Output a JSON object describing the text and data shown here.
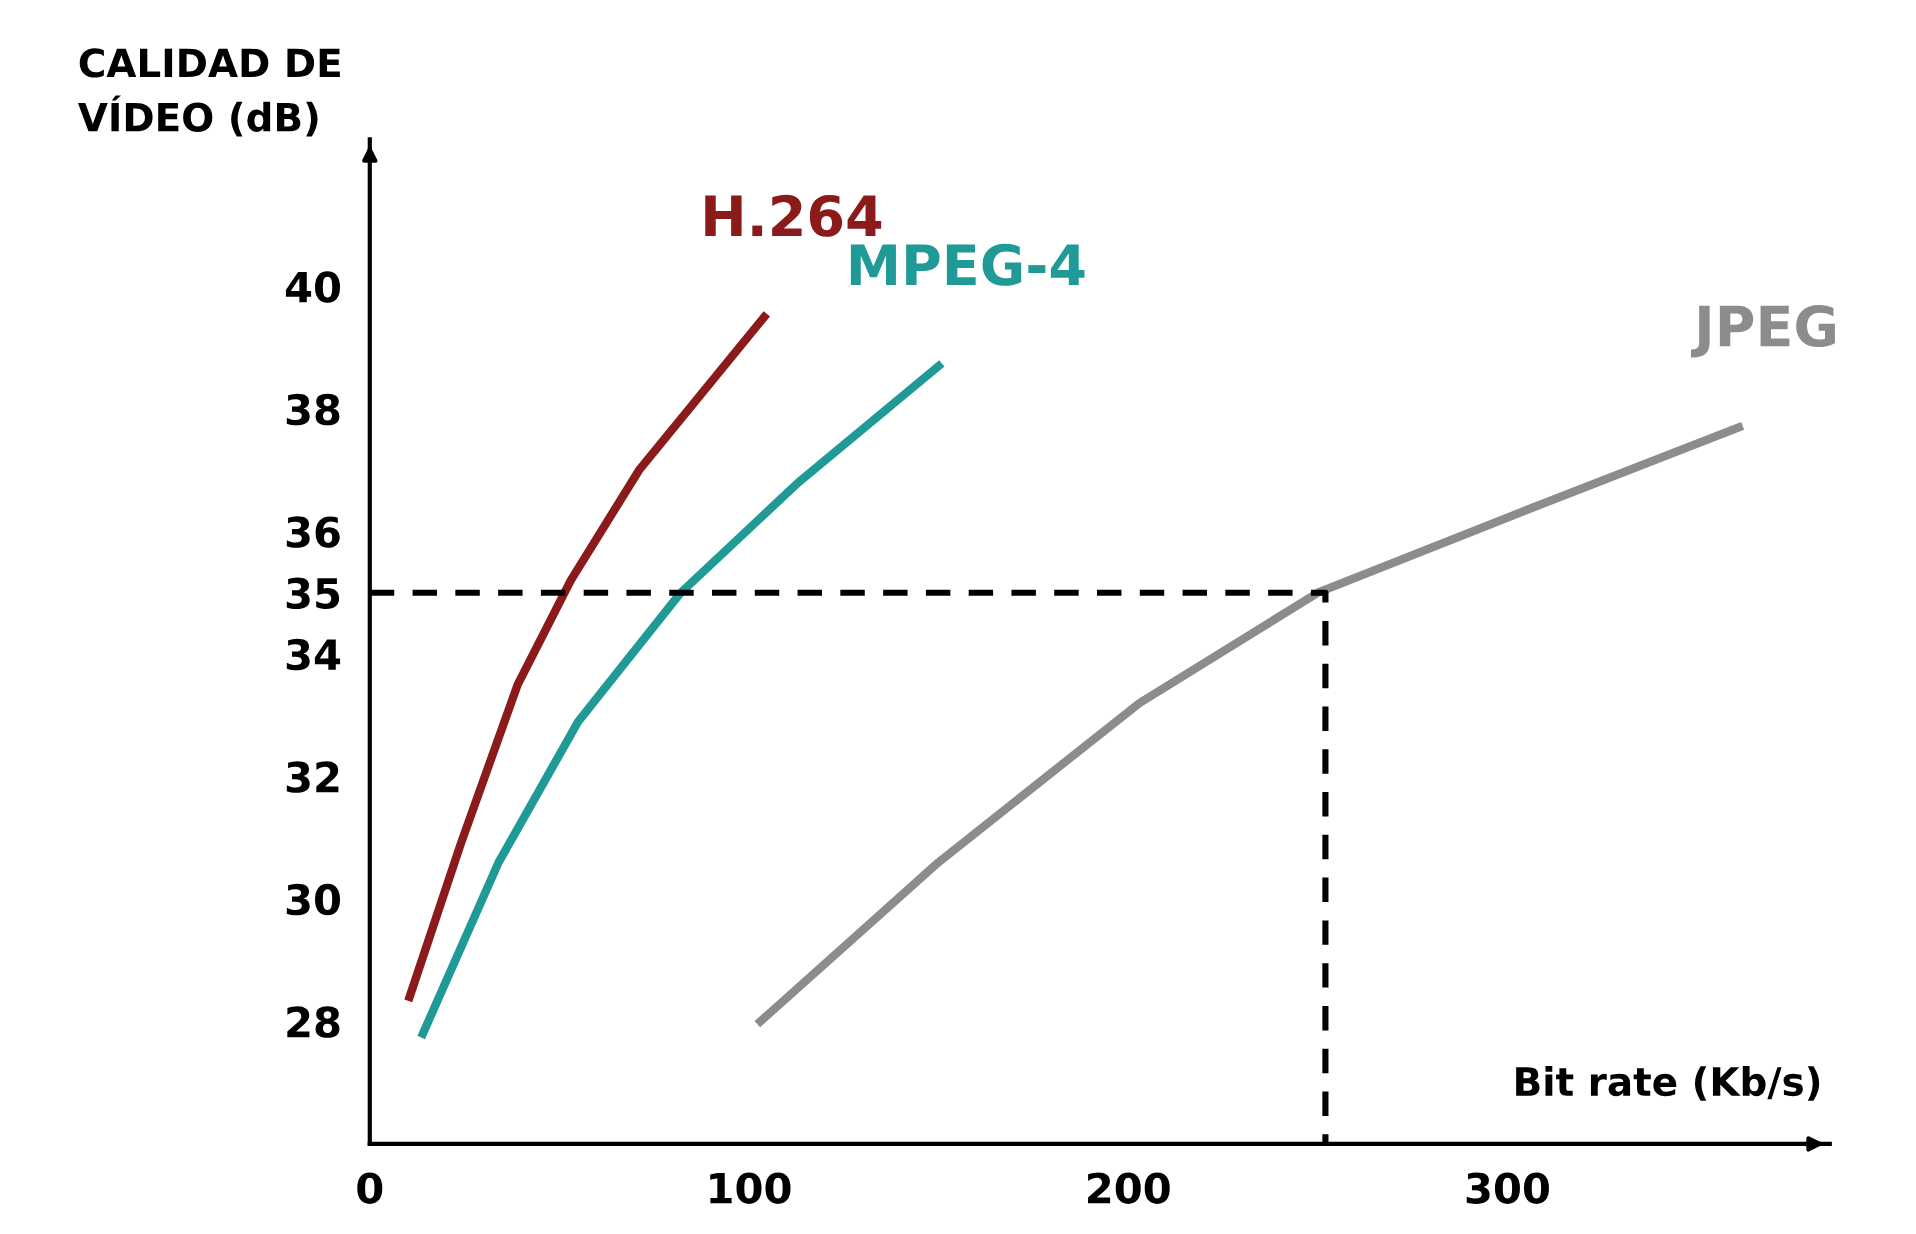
{
  "chart_data": {
    "type": "line",
    "xlabel": "Bit rate (Kb/s)",
    "ylabel": "CALIDAD DE\nVÍDEO (dB)",
    "xlim": [
      0,
      385
    ],
    "ylim": [
      26,
      42.4
    ],
    "xticks": [
      0,
      100,
      200,
      300
    ],
    "yticks": [
      28,
      30,
      32,
      34,
      35,
      36,
      38,
      40
    ],
    "grid": false,
    "legend": false,
    "marker": "none",
    "series": [
      {
        "name": "H.264",
        "color": "#8b1a1a",
        "x": [
          10.5,
          24,
          39,
          53,
          71,
          104
        ],
        "values": [
          28.4,
          30.9,
          33.5,
          35.2,
          37,
          39.5
        ]
      },
      {
        "name": "MPEG-4",
        "color": "#1f9a96",
        "x": [
          14,
          34,
          55,
          82,
          113,
          150
        ],
        "values": [
          27.8,
          30.6,
          32.9,
          35,
          36.8,
          38.7
        ]
      },
      {
        "name": "JPEG",
        "color": "#8c8c8c",
        "x": [
          103,
          150,
          203,
          250,
          303,
          361
        ],
        "values": [
          28,
          30.6,
          33.2,
          35,
          36.3,
          37.7
        ]
      },
      {
        "color": "#000000",
        "line_style": "dashed",
        "x": [
          0,
          252,
          252
        ],
        "values": [
          35,
          35,
          26
        ]
      }
    ]
  }
}
